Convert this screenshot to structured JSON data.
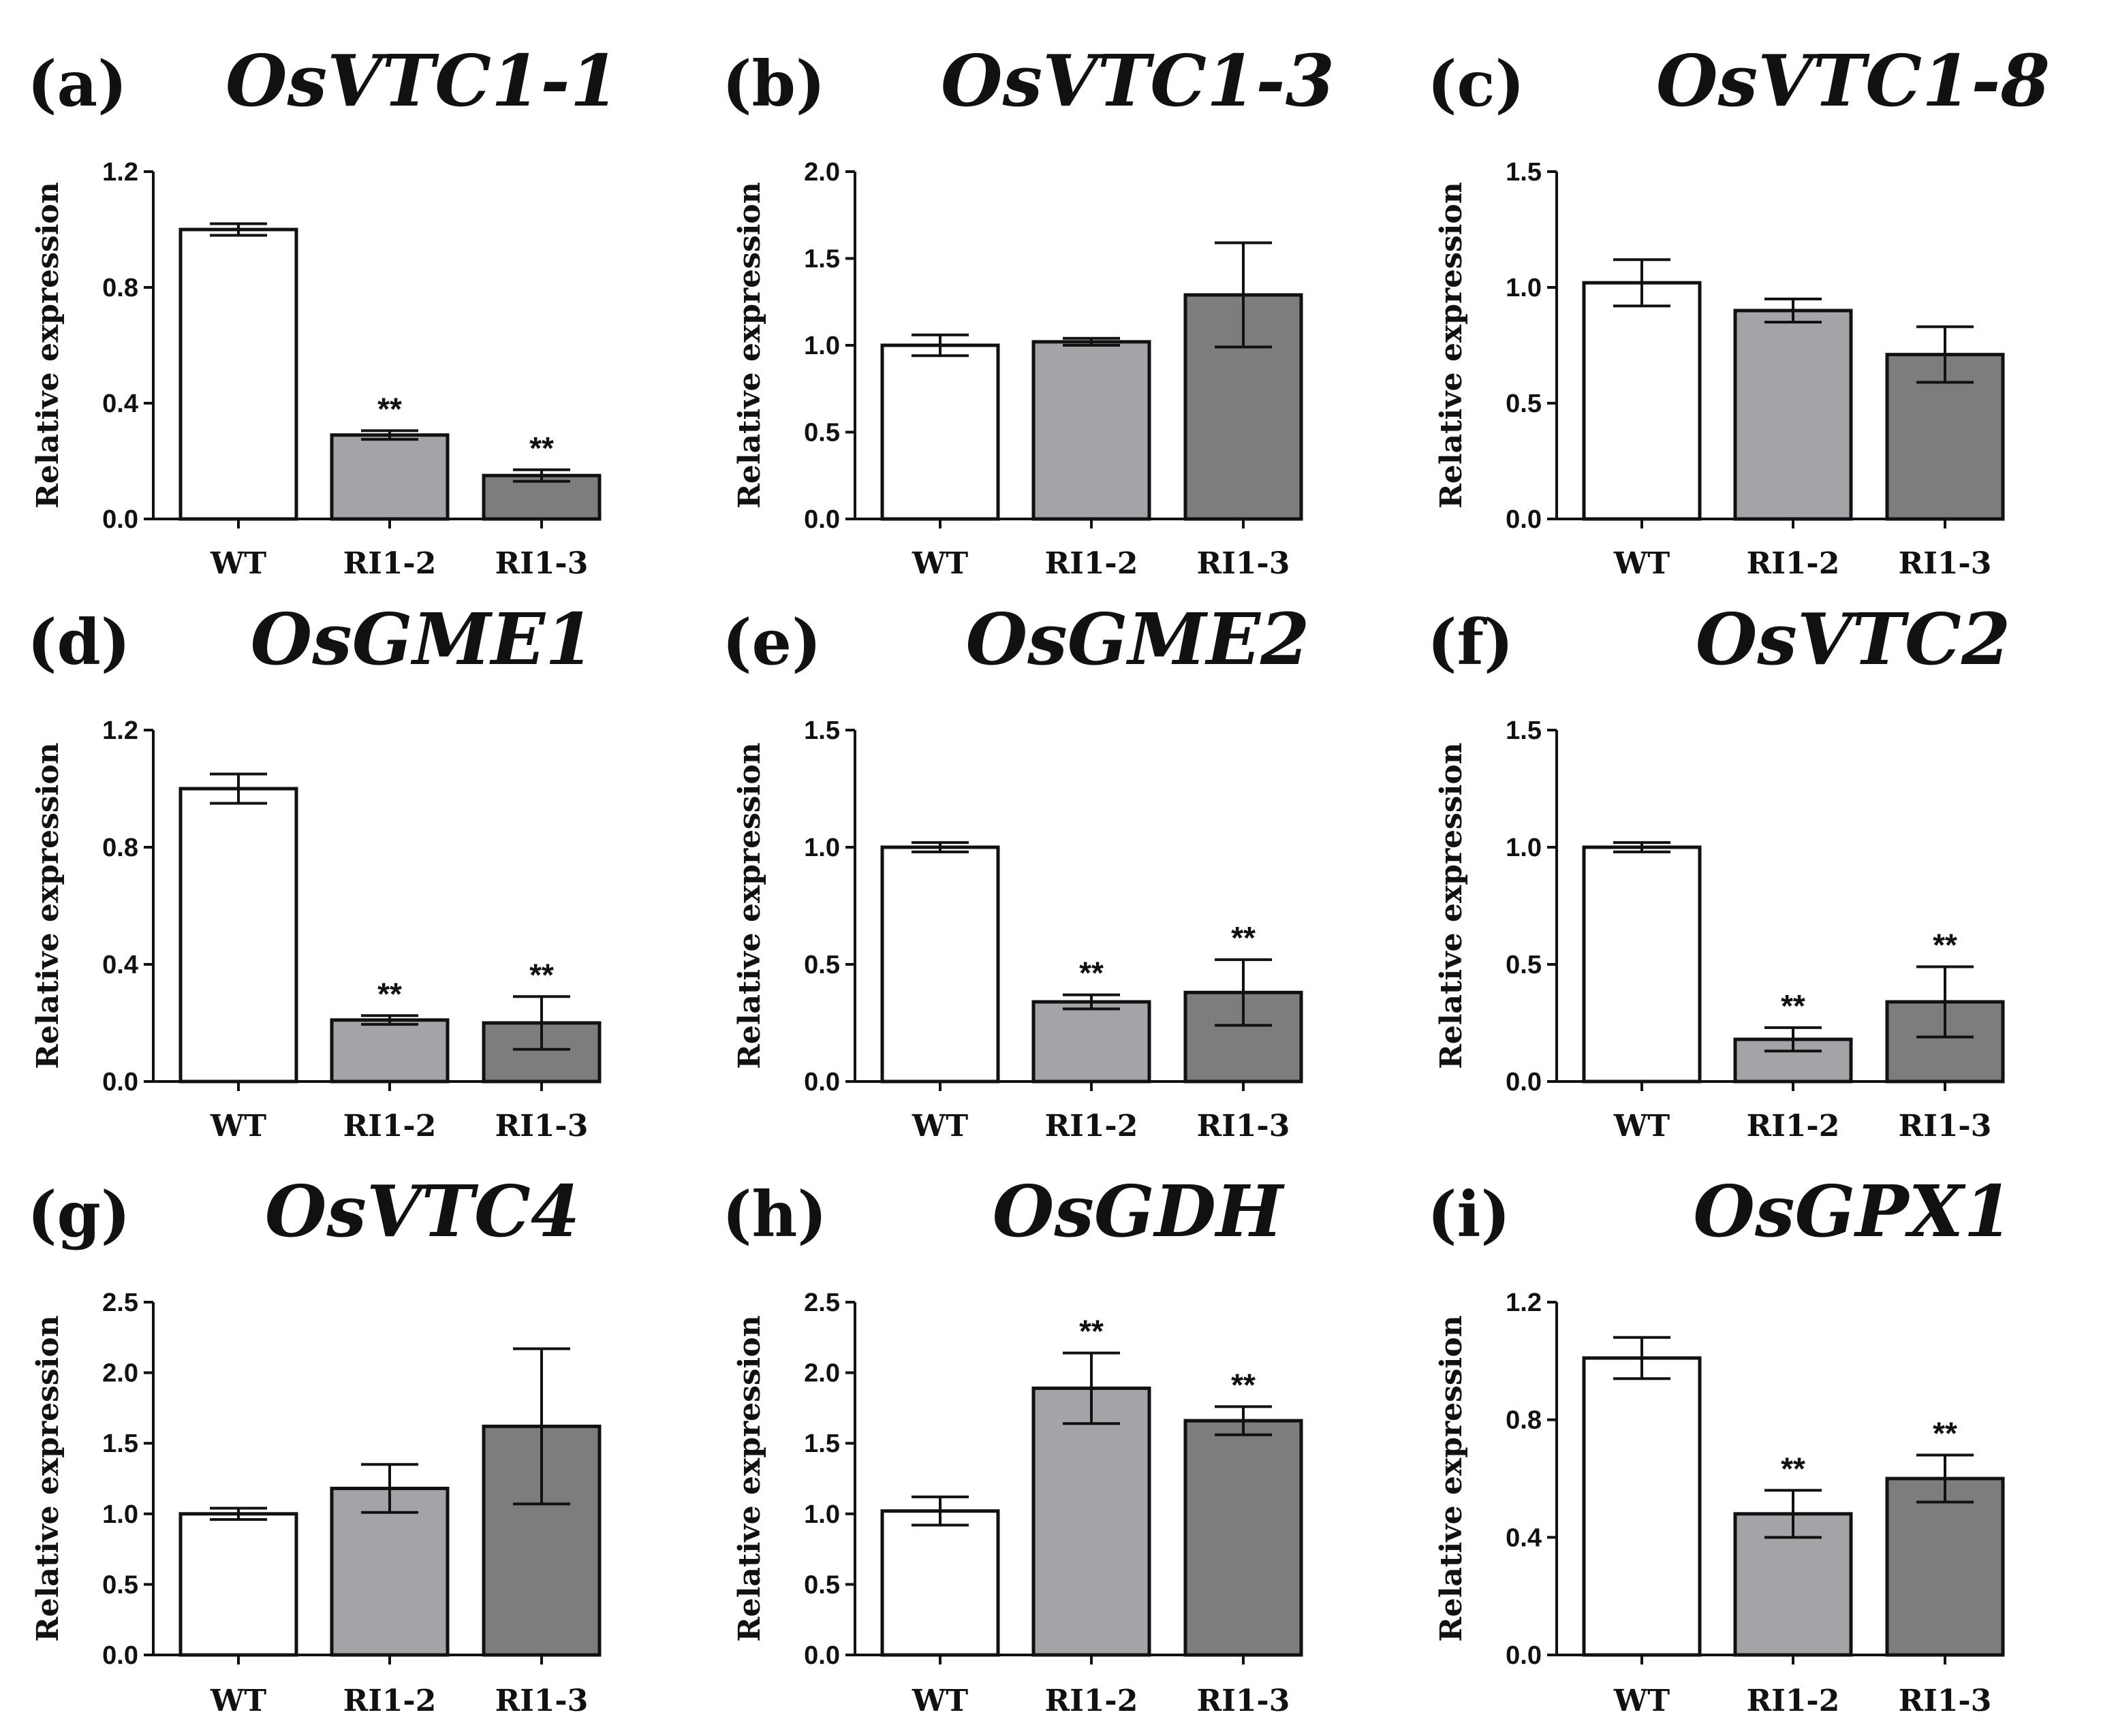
{
  "figure": {
    "y_axis_label": "Relative expression"
  },
  "bar_colors": [
    "#ffffff",
    "#a3a3a8",
    "#7d7d7d"
  ],
  "chart_data": [
    {
      "type": "bar",
      "panel": "(a)",
      "title": "OsVTC1-1",
      "ylabel": "Relative expression",
      "categories": [
        "WT",
        "RI1-2",
        "RI1-3"
      ],
      "values": [
        1.0,
        0.29,
        0.15
      ],
      "errors": [
        0.02,
        0.015,
        0.02
      ],
      "significance": [
        "",
        "**",
        "**"
      ],
      "ylim": [
        0,
        1.2
      ],
      "yticks": [
        "0.0",
        "0.4",
        "0.8",
        "1.2"
      ]
    },
    {
      "type": "bar",
      "panel": "(b)",
      "title": "OsVTC1-3",
      "ylabel": "Relative expression",
      "categories": [
        "WT",
        "RI1-2",
        "RI1-3"
      ],
      "values": [
        1.0,
        1.02,
        1.29
      ],
      "errors": [
        0.06,
        0.02,
        0.3
      ],
      "significance": [
        "",
        "",
        ""
      ],
      "ylim": [
        0,
        2.0
      ],
      "yticks": [
        "0.0",
        "0.5",
        "1.0",
        "1.5",
        "2.0"
      ]
    },
    {
      "type": "bar",
      "panel": "(c)",
      "title": "OsVTC1-8",
      "ylabel": "Relative expression",
      "categories": [
        "WT",
        "RI1-2",
        "RI1-3"
      ],
      "values": [
        1.02,
        0.9,
        0.71
      ],
      "errors": [
        0.1,
        0.05,
        0.12
      ],
      "significance": [
        "",
        "",
        ""
      ],
      "ylim": [
        0,
        1.5
      ],
      "yticks": [
        "0.0",
        "0.5",
        "1.0",
        "1.5"
      ]
    },
    {
      "type": "bar",
      "panel": "(d)",
      "title": "OsGME1",
      "ylabel": "Relative expression",
      "categories": [
        "WT",
        "RI1-2",
        "RI1-3"
      ],
      "values": [
        1.0,
        0.21,
        0.2
      ],
      "errors": [
        0.05,
        0.015,
        0.09
      ],
      "significance": [
        "",
        "**",
        "**"
      ],
      "ylim": [
        0,
        1.2
      ],
      "yticks": [
        "0.0",
        "0.4",
        "0.8",
        "1.2"
      ]
    },
    {
      "type": "bar",
      "panel": "(e)",
      "title": "OsGME2",
      "ylabel": "Relative expression",
      "categories": [
        "WT",
        "RI1-2",
        "RI1-3"
      ],
      "values": [
        1.0,
        0.34,
        0.38
      ],
      "errors": [
        0.02,
        0.03,
        0.14
      ],
      "significance": [
        "",
        "**",
        "**"
      ],
      "ylim": [
        0,
        1.5
      ],
      "yticks": [
        "0.0",
        "0.5",
        "1.0",
        "1.5"
      ]
    },
    {
      "type": "bar",
      "panel": "(f)",
      "title": "OsVTC2",
      "ylabel": "Relative expression",
      "categories": [
        "WT",
        "RI1-2",
        "RI1-3"
      ],
      "values": [
        1.0,
        0.18,
        0.34
      ],
      "errors": [
        0.02,
        0.05,
        0.15
      ],
      "significance": [
        "",
        "**",
        "**"
      ],
      "ylim": [
        0,
        1.5
      ],
      "yticks": [
        "0.0",
        "0.5",
        "1.0",
        "1.5"
      ]
    },
    {
      "type": "bar",
      "panel": "(g)",
      "title": "OsVTC4",
      "ylabel": "Relative expression",
      "categories": [
        "WT",
        "RI1-2",
        "RI1-3"
      ],
      "values": [
        1.0,
        1.18,
        1.62
      ],
      "errors": [
        0.04,
        0.17,
        0.55
      ],
      "significance": [
        "",
        "",
        ""
      ],
      "ylim": [
        0,
        2.5
      ],
      "yticks": [
        "0.0",
        "0.5",
        "1.0",
        "1.5",
        "2.0",
        "2.5"
      ]
    },
    {
      "type": "bar",
      "panel": "(h)",
      "title": "OsGDH",
      "ylabel": "Relative expression",
      "categories": [
        "WT",
        "RI1-2",
        "RI1-3"
      ],
      "values": [
        1.02,
        1.89,
        1.66
      ],
      "errors": [
        0.1,
        0.25,
        0.1
      ],
      "significance": [
        "",
        "**",
        "**"
      ],
      "ylim": [
        0,
        2.5
      ],
      "yticks": [
        "0.0",
        "0.5",
        "1.0",
        "1.5",
        "2.0",
        "2.5"
      ]
    },
    {
      "type": "bar",
      "panel": "(i)",
      "title": "OsGPX1",
      "ylabel": "Relative expression",
      "categories": [
        "WT",
        "RI1-2",
        "RI1-3"
      ],
      "values": [
        1.01,
        0.48,
        0.6
      ],
      "errors": [
        0.07,
        0.08,
        0.08
      ],
      "significance": [
        "",
        "**",
        "**"
      ],
      "ylim": [
        0,
        1.2
      ],
      "yticks": [
        "0.0",
        "0.4",
        "0.8",
        "1.2"
      ]
    }
  ]
}
